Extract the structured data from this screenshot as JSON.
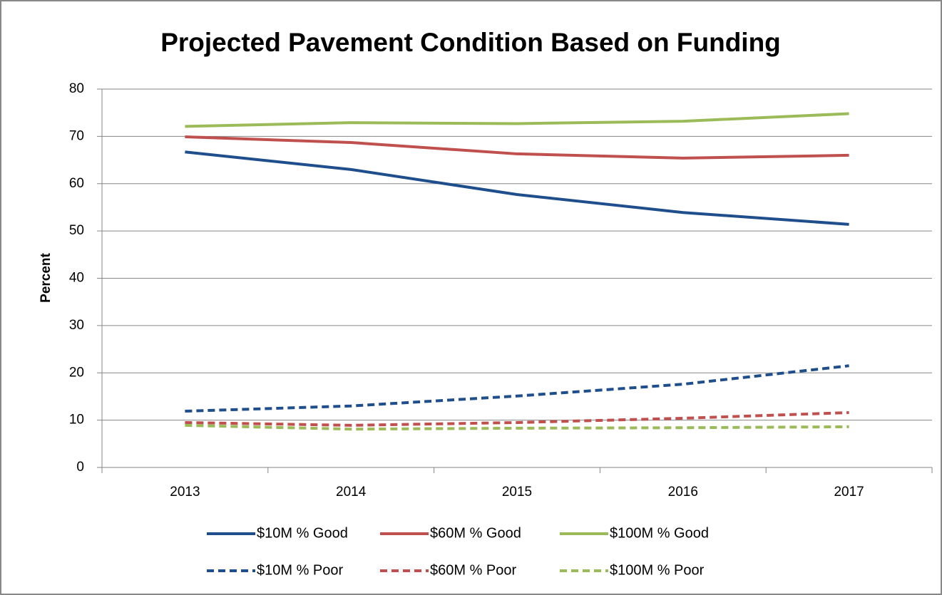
{
  "chart_data": {
    "type": "line",
    "title": "Projected Pavement Condition Based on Funding",
    "y_label": "Percent",
    "categories": [
      "2013",
      "2014",
      "2015",
      "2016",
      "2017"
    ],
    "series": [
      {
        "name": "$10M % Good",
        "color": "#1f4e8c",
        "dashed": false,
        "values": [
          66.7,
          63.0,
          57.7,
          53.9,
          51.4
        ]
      },
      {
        "name": "$60M % Good",
        "color": "#c0504d",
        "dashed": false,
        "values": [
          69.9,
          68.7,
          66.3,
          65.4,
          66.0
        ]
      },
      {
        "name": "$100M % Good",
        "color": "#9bbb59",
        "dashed": false,
        "values": [
          72.1,
          72.9,
          72.7,
          73.2,
          74.8
        ]
      },
      {
        "name": "$10M % Poor",
        "color": "#1f4e8c",
        "dashed": true,
        "values": [
          11.9,
          13.0,
          15.1,
          17.6,
          21.5
        ]
      },
      {
        "name": "$60M % Poor",
        "color": "#c0504d",
        "dashed": true,
        "values": [
          9.5,
          8.9,
          9.5,
          10.4,
          11.6
        ]
      },
      {
        "name": "$100M % Poor",
        "color": "#9bbb59",
        "dashed": true,
        "values": [
          8.9,
          8.1,
          8.3,
          8.4,
          8.6
        ]
      }
    ],
    "ylim": [
      0,
      80
    ],
    "yticks": [
      0,
      10,
      20,
      30,
      40,
      50,
      60,
      70,
      80
    ],
    "grid": true,
    "legend": "bottom"
  }
}
